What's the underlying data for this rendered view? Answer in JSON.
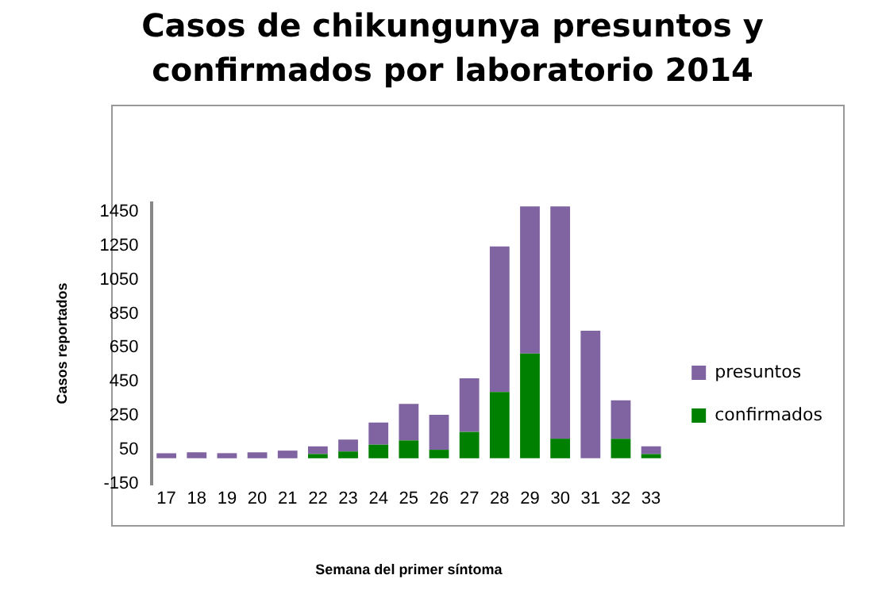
{
  "chart_data": {
    "type": "bar",
    "title": "Casos de chikungunya presuntos y confirmados por laboratorio 2014",
    "xlabel": "Semana del primer síntoma",
    "ylabel": "Casos reportados",
    "categories": [
      "17",
      "18",
      "19",
      "20",
      "21",
      "22",
      "23",
      "24",
      "25",
      "26",
      "27",
      "28",
      "29",
      "30",
      "31",
      "32",
      "33"
    ],
    "stacked": true,
    "series": [
      {
        "name": "confirmados",
        "color": "#008000",
        "values": [
          0,
          0,
          0,
          0,
          0,
          25,
          40,
          80,
          105,
          50,
          155,
          390,
          615,
          115,
          0,
          115,
          25
        ]
      },
      {
        "name": "presuntos",
        "color": "#8064a2",
        "values": [
          30,
          35,
          30,
          35,
          45,
          45,
          70,
          130,
          215,
          205,
          315,
          855,
          865,
          1365,
          750,
          225,
          45
        ]
      }
    ],
    "ylim": [
      -150,
      1500
    ],
    "yticks": [
      -150,
      50,
      250,
      450,
      650,
      850,
      1050,
      1250,
      1450
    ],
    "grid": false,
    "legend": "right"
  }
}
